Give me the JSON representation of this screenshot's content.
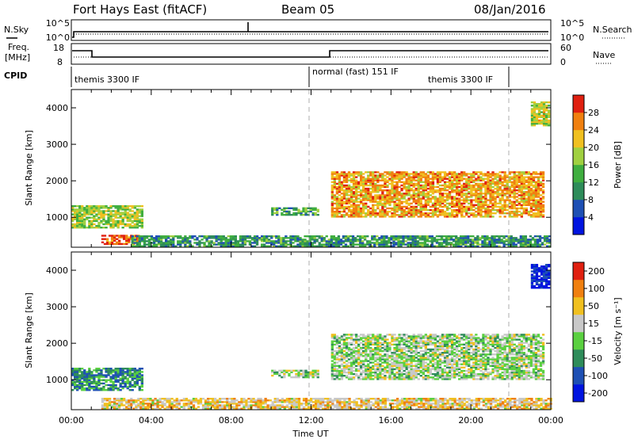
{
  "header": {
    "title": "Fort Hays East (fitACF)",
    "beam": "Beam 05",
    "date": "08/Jan/2016"
  },
  "top_panels": {
    "nsky_label": "N.Sky",
    "nsearch_label": "N.Search",
    "freq_label_top": "Freq.",
    "freq_label_units": "[MHz]",
    "nave_label": "Nave",
    "cpid_label": "CPID",
    "noise_ticks_left": [
      "10^5",
      "10^0"
    ],
    "noise_ticks_right": [
      "10^5",
      "10^0"
    ],
    "freq_ticks_left": [
      "18",
      "8"
    ],
    "freq_ticks_right": [
      "60",
      "0"
    ]
  },
  "cpid_segments": [
    {
      "label": "themis 3300 IF",
      "start_hour": 0
    },
    {
      "label": "normal (fast) 151 IF",
      "start_hour": 12
    },
    {
      "label": "themis 3300 IF",
      "start_hour": 22
    }
  ],
  "x_axis": {
    "label": "Time UT",
    "ticks": [
      "00:00",
      "04:00",
      "08:00",
      "12:00",
      "16:00",
      "20:00",
      "00:00"
    ],
    "range_hours": [
      0,
      24
    ]
  },
  "chart_data": [
    {
      "type": "heatmap",
      "name": "power",
      "ylabel": "Slant Range [km]",
      "ylim": [
        180,
        4500
      ],
      "yticks": [
        "1000",
        "2000",
        "3000",
        "4000"
      ],
      "colorbar": {
        "label": "Power [dB]",
        "ticks": [
          "4",
          "8",
          "12",
          "16",
          "20",
          "24",
          "28"
        ],
        "colors": [
          "#0014e0",
          "#1e50b4",
          "#2e8c5a",
          "#3fae3f",
          "#a0d040",
          "#f0c020",
          "#f08010",
          "#e02010"
        ]
      },
      "regions": [
        {
          "t0": 0.0,
          "t1": 3.6,
          "r0": 700,
          "r1": 1320,
          "level": 0.55
        },
        {
          "t0": 1.5,
          "t1": 3.4,
          "r0": 250,
          "r1": 500,
          "level": 0.9
        },
        {
          "t0": 3.0,
          "t1": 24.0,
          "r0": 190,
          "r1": 480,
          "level": 0.35
        },
        {
          "t0": 13.0,
          "t1": 23.6,
          "r0": 1000,
          "r1": 2250,
          "level": 0.75
        },
        {
          "t0": 23.0,
          "t1": 23.9,
          "r0": 3500,
          "r1": 4150,
          "level": 0.6
        },
        {
          "t0": 10.0,
          "t1": 12.3,
          "r0": 1050,
          "r1": 1250,
          "level": 0.4
        }
      ]
    },
    {
      "type": "heatmap",
      "name": "velocity",
      "ylabel": "Slant Range [km]",
      "ylim": [
        180,
        4500
      ],
      "yticks": [
        "1000",
        "2000",
        "3000",
        "4000"
      ],
      "colorbar": {
        "label": "Velocity [m s⁻¹]",
        "ticks": [
          "200",
          "100",
          "50",
          "15",
          "-15",
          "-50",
          "-100",
          "-200"
        ],
        "colors": [
          "#0014e0",
          "#1e50b4",
          "#2e8c5a",
          "#5ad040",
          "#c8c8c8",
          "#f0c020",
          "#f08010",
          "#e02010"
        ]
      },
      "regions": [
        {
          "t0": 0.0,
          "t1": 3.6,
          "r0": 700,
          "r1": 1320,
          "level": 0.3
        },
        {
          "t0": 1.5,
          "t1": 24.0,
          "r0": 190,
          "r1": 500,
          "level": 0.65
        },
        {
          "t0": 13.0,
          "t1": 23.6,
          "r0": 1000,
          "r1": 2250,
          "level": 0.5
        },
        {
          "t0": 23.0,
          "t1": 23.9,
          "r0": 3500,
          "r1": 4150,
          "level": 0.05
        },
        {
          "t0": 10.0,
          "t1": 12.3,
          "r0": 1050,
          "r1": 1250,
          "level": 0.5
        }
      ]
    }
  ]
}
